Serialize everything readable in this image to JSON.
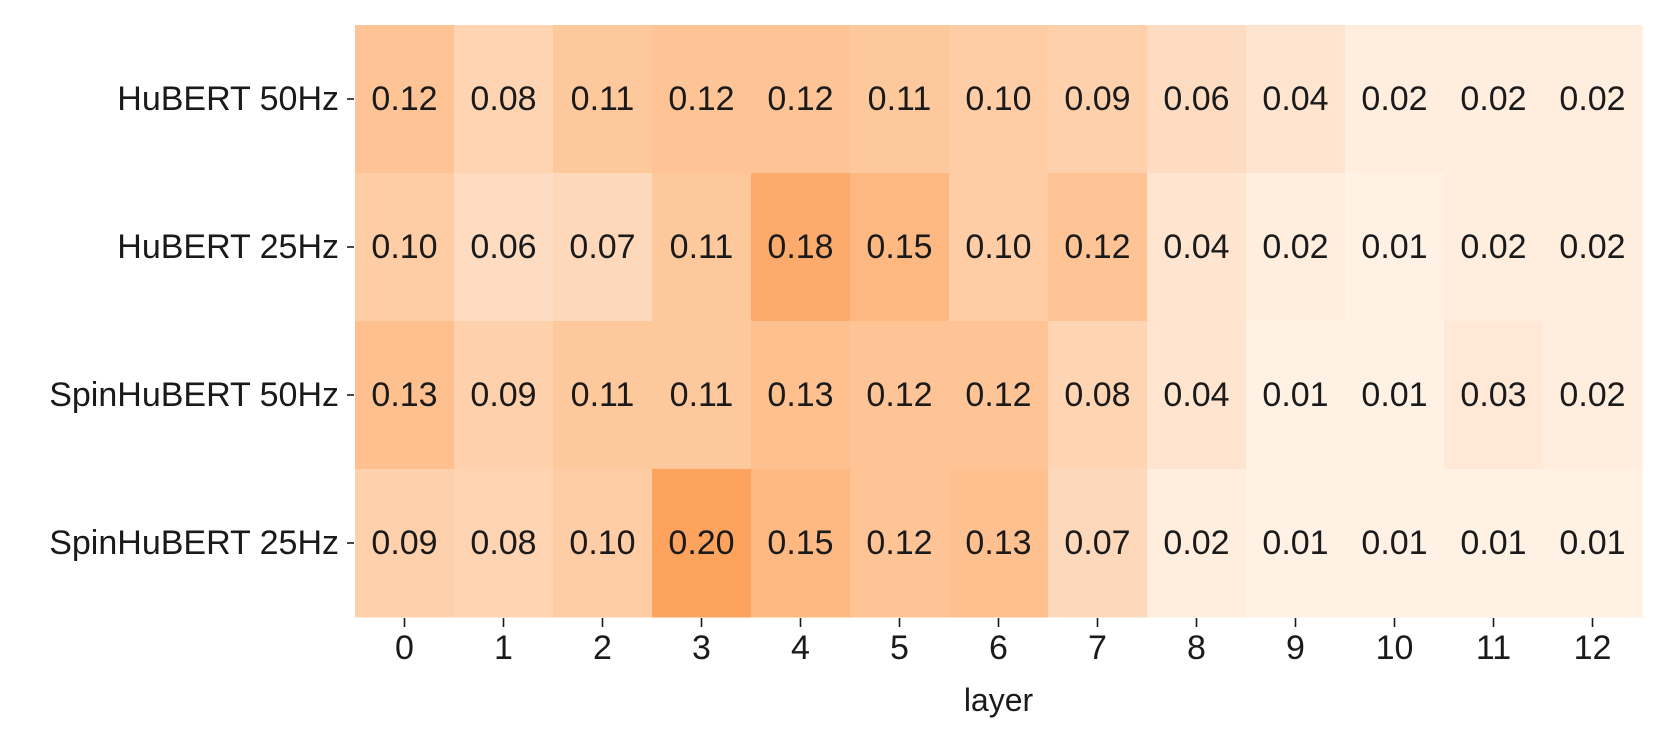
{
  "chart_data": {
    "type": "heatmap",
    "title": "",
    "xlabel": "layer",
    "ylabel": "",
    "x_categories": [
      "0",
      "1",
      "2",
      "3",
      "4",
      "5",
      "6",
      "7",
      "8",
      "9",
      "10",
      "11",
      "12"
    ],
    "y_categories": [
      "HuBERT 50Hz",
      "HuBERT 25Hz",
      "SpinHuBERT 50Hz",
      "SpinHuBERT 25Hz"
    ],
    "values": [
      [
        0.12,
        0.08,
        0.11,
        0.12,
        0.12,
        0.11,
        0.1,
        0.09,
        0.06,
        0.04,
        0.02,
        0.02,
        0.02
      ],
      [
        0.1,
        0.06,
        0.07,
        0.11,
        0.18,
        0.15,
        0.1,
        0.12,
        0.04,
        0.02,
        0.01,
        0.02,
        0.02
      ],
      [
        0.13,
        0.09,
        0.11,
        0.11,
        0.13,
        0.12,
        0.12,
        0.08,
        0.04,
        0.01,
        0.01,
        0.03,
        0.02
      ],
      [
        0.09,
        0.08,
        0.1,
        0.2,
        0.15,
        0.12,
        0.13,
        0.07,
        0.02,
        0.01,
        0.01,
        0.01,
        0.01
      ]
    ],
    "labels": [
      [
        "0.12",
        "0.08",
        "0.11",
        "0.12",
        "0.12",
        "0.11",
        "0.10",
        "0.09",
        "0.06",
        "0.04",
        "0.02",
        "0.02",
        "0.02"
      ],
      [
        "0.10",
        "0.06",
        "0.07",
        "0.11",
        "0.18",
        "0.15",
        "0.10",
        "0.12",
        "0.04",
        "0.02",
        "0.01",
        "0.02",
        "0.02"
      ],
      [
        "0.13",
        "0.09",
        "0.11",
        "0.11",
        "0.13",
        "0.12",
        "0.12",
        "0.08",
        "0.04",
        "0.01",
        "0.01",
        "0.03",
        "0.02"
      ],
      [
        "0.09",
        "0.08",
        "0.10",
        "0.20",
        "0.15",
        "0.12",
        "0.13",
        "0.07",
        "0.02",
        "0.01",
        "0.01",
        "0.01",
        "0.01"
      ]
    ],
    "color_scale": {
      "min_value": 0.0,
      "max_value": 0.2,
      "min_color": "#fff5eb",
      "max_color": "#fda35e"
    },
    "grid": false,
    "colorbar": false
  }
}
